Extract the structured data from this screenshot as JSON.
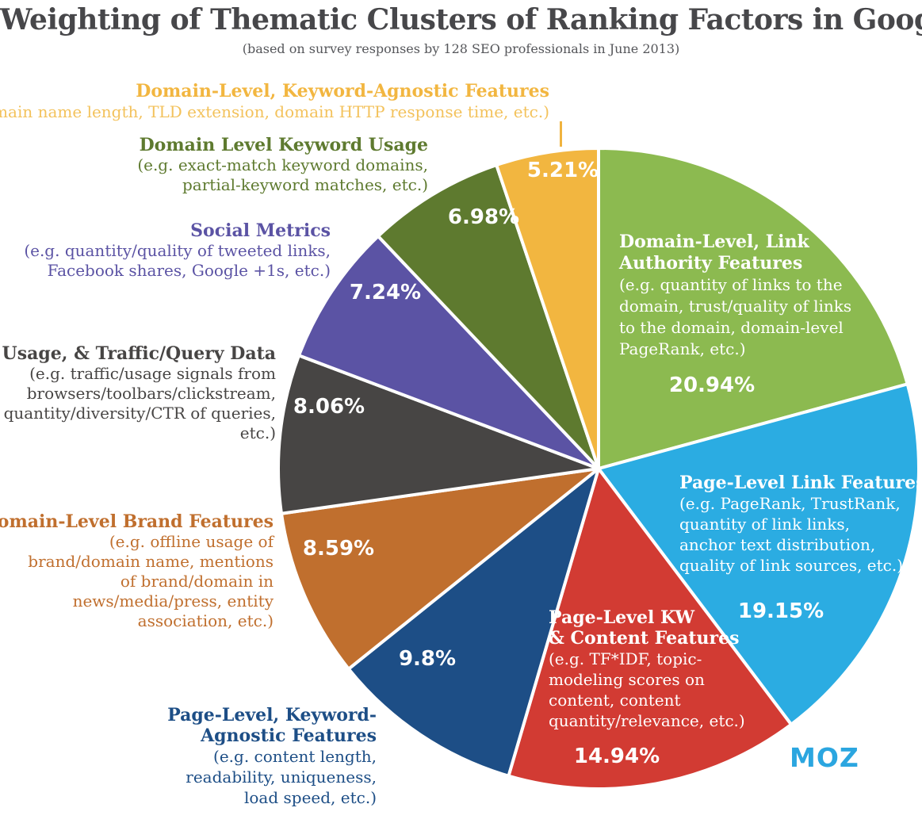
{
  "chart_data": {
    "type": "pie",
    "title": "Weighting of Thematic Clusters of Ranking Factors in Google",
    "subtitle": "(based on survey responses by 128 SEO professionals in June 2013)",
    "legend_position": "around-pie",
    "start_angle_deg": 0,
    "direction": "clockwise",
    "slices": [
      {
        "label": "Domain-Level, Link Authority Features",
        "label_lines": [
          "Domain-Level, Link",
          "Authority Features"
        ],
        "desc_lines": [
          "(e.g. quantity of links to the",
          "domain, trust/quality of links",
          "to the domain, domain-level",
          "PageRank, etc.)"
        ],
        "value": 20.94,
        "pct_label": "20.94%",
        "color": "#8cba50",
        "label_placement": "inside"
      },
      {
        "label": "Page-Level Link Features",
        "label_lines": [
          "Page-Level Link Features"
        ],
        "desc_lines": [
          "(e.g. PageRank, TrustRank,",
          "quantity of link links,",
          "anchor text distribution,",
          "quality of link sources, etc.)"
        ],
        "value": 19.15,
        "pct_label": "19.15%",
        "color": "#2bace2",
        "label_placement": "inside"
      },
      {
        "label": "Page-Level KW & Content Features",
        "label_lines": [
          "Page-Level KW",
          "& Content Features"
        ],
        "desc_lines": [
          "(e.g. TF*IDF, topic-",
          "modeling scores on",
          "content, content",
          "quantity/relevance, etc.)"
        ],
        "value": 14.94,
        "pct_label": "14.94%",
        "color": "#d23b33",
        "label_placement": "inside"
      },
      {
        "label": "Page-Level, Keyword-Agnostic Features",
        "label_lines": [
          "Page-Level, Keyword-",
          "Agnostic Features"
        ],
        "desc_lines": [
          "(e.g. content length,",
          "readability, uniqueness,",
          "load speed, etc.)"
        ],
        "value": 9.8,
        "pct_label": "9.8%",
        "color": "#1d4e86",
        "label_placement": "outside"
      },
      {
        "label": "Domain-Level Brand Features",
        "label_lines": [
          "Domain-Level Brand Features"
        ],
        "desc_lines": [
          "(e.g. offline usage of",
          "brand/domain name, mentions",
          "of brand/domain in",
          "news/media/press, entity",
          "association, etc.)"
        ],
        "value": 8.59,
        "pct_label": "8.59%",
        "color": "#c06f2e",
        "label_placement": "outside"
      },
      {
        "label": "User, Usage, & Traffic/Query Data",
        "label_lines": [
          "User, Usage, & Traffic/Query Data"
        ],
        "desc_lines": [
          "(e.g. traffic/usage signals from",
          "browsers/toolbars/clickstream,",
          "quantity/diversity/CTR of queries,",
          "etc.)"
        ],
        "value": 8.06,
        "pct_label": "8.06%",
        "color": "#474544",
        "label_placement": "outside"
      },
      {
        "label": "Social Metrics",
        "label_lines": [
          "Social Metrics"
        ],
        "desc_lines": [
          "(e.g. quantity/quality of tweeted links,",
          "Facebook shares, Google +1s, etc.)"
        ],
        "value": 7.24,
        "pct_label": "7.24%",
        "color": "#5b53a4",
        "label_placement": "outside"
      },
      {
        "label": "Domain Level Keyword Usage",
        "label_lines": [
          "Domain Level Keyword Usage"
        ],
        "desc_lines": [
          "(e.g. exact-match keyword domains,",
          "partial-keyword matches, etc.)"
        ],
        "value": 6.98,
        "pct_label": "6.98%",
        "color": "#5e7a2f",
        "label_placement": "outside"
      },
      {
        "label": "Domain-Level, Keyword-Agnostic Features",
        "label_lines": [
          "Domain-Level, Keyword-Agnostic Features"
        ],
        "desc_lines": [
          "(e.g. domain name length, TLD extension, domain HTTP response time, etc.)"
        ],
        "value": 5.21,
        "pct_label": "5.21%",
        "color": "#f2b640",
        "desc_color": "#f3c25c",
        "label_placement": "outside"
      }
    ]
  },
  "branding": {
    "logo_text": "MOZ",
    "logo_color": "#2ba6e0"
  }
}
